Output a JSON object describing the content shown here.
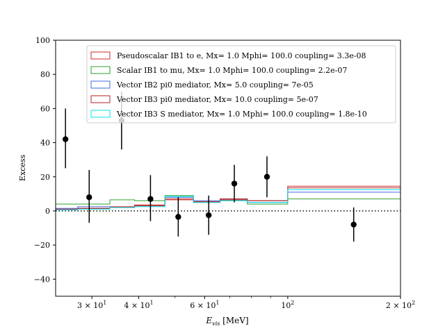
{
  "chart_data": {
    "type": "step",
    "title": "",
    "xlabel_main": "E",
    "xlabel_sub": "vis",
    "xlabel_unit": " [MeV]",
    "ylabel": "Excess",
    "xscale": "log",
    "xlim": [
      24,
      200
    ],
    "ylim": [
      -50,
      100
    ],
    "y_ticks": [
      -40,
      -20,
      0,
      20,
      40,
      60,
      80,
      100
    ],
    "y_tick_labels": [
      "−40",
      "−20",
      "0",
      "20",
      "40",
      "60",
      "80",
      "100"
    ],
    "x_ticks": [
      {
        "value": 30,
        "base": "3 × 10",
        "exp": "1"
      },
      {
        "value": 40,
        "base": "4 × 10",
        "exp": "1"
      },
      {
        "value": 60,
        "base": "6 × 10",
        "exp": "1"
      },
      {
        "value": 100,
        "base": "10",
        "exp": "2"
      },
      {
        "value": 200,
        "base": "2 × 10",
        "exp": "2"
      }
    ],
    "x_minor_ticks": [
      50,
      70,
      80,
      90
    ],
    "bin_edges": [
      24,
      27.5,
      33.5,
      39,
      47,
      56,
      66,
      78,
      100,
      200
    ],
    "series": [
      {
        "name": "Pseudoscalar IB1 to e, Mx= 1.0 Mphi= 100.0 coupling= 3.3e-08",
        "color": "#d62728",
        "values": [
          1.0,
          1.5,
          2.5,
          3.5,
          6.5,
          5.5,
          6.5,
          6.0,
          14.5
        ]
      },
      {
        "name": "Scalar IB1 to mu, Mx= 1.0 Mphi= 100.0 coupling= 2.2e-07",
        "color": "#2ca02c",
        "values": [
          4.0,
          4.0,
          6.5,
          6.0,
          9.0,
          5.0,
          6.0,
          4.0,
          7.0
        ]
      },
      {
        "name": "Vector IB2 pi0 mediator, Mx= 5.0 coupling= 7e-05",
        "color": "#4169e1",
        "values": [
          1.5,
          2.5,
          2.0,
          3.0,
          8.0,
          6.0,
          7.0,
          5.0,
          11.0
        ]
      },
      {
        "name": "Vector IB3 pi0 mediator, Mx= 10.0 coupling= 5e-07",
        "color": "#b22222",
        "values": [
          1.0,
          1.5,
          2.0,
          3.0,
          7.0,
          5.0,
          7.0,
          6.0,
          13.5
        ]
      },
      {
        "name": "Vector IB3 S mediator, Mx= 1.0 Mphi= 100.0 coupling= 1.8e-10",
        "color": "#00e5ee",
        "values": [
          0.5,
          1.0,
          2.0,
          2.5,
          8.5,
          5.0,
          6.0,
          5.0,
          12.5
        ]
      }
    ],
    "data_points": [
      {
        "x": 25.5,
        "y": 42,
        "ylo": 25,
        "yhi": 60
      },
      {
        "x": 29.5,
        "y": 8,
        "ylo": -7,
        "yhi": 24
      },
      {
        "x": 36,
        "y": 53,
        "ylo": 36,
        "yhi": 70
      },
      {
        "x": 43,
        "y": 7,
        "ylo": -6,
        "yhi": 21
      },
      {
        "x": 51,
        "y": -3.5,
        "ylo": -15,
        "yhi": 8
      },
      {
        "x": 61.5,
        "y": -2.5,
        "ylo": -14,
        "yhi": 9
      },
      {
        "x": 72,
        "y": 16,
        "ylo": 5,
        "yhi": 27
      },
      {
        "x": 88,
        "y": 20,
        "ylo": 8,
        "yhi": 32
      },
      {
        "x": 150,
        "y": -8,
        "ylo": -18,
        "yhi": 2
      }
    ],
    "reference_line": {
      "y": 0,
      "style": "dotted"
    },
    "legend_position": "upper-right"
  }
}
